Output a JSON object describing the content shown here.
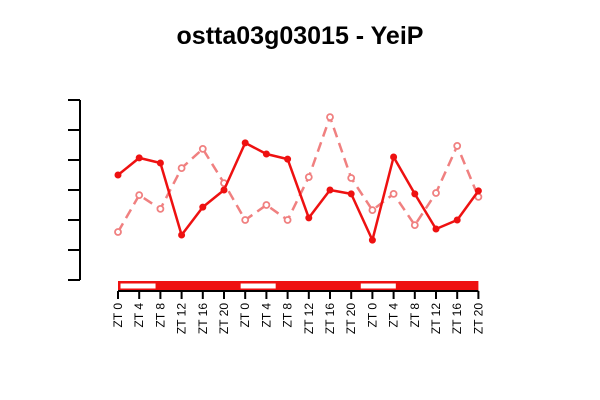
{
  "chart_data": {
    "type": "line",
    "title": "ostta03g03015 - YeiP",
    "xlabel": "",
    "ylabel": "",
    "x_tick_labels": [
      "ZT 0",
      "ZT 4",
      "ZT 8",
      "ZT 12",
      "ZT 16",
      "ZT 20",
      "ZT 0",
      "ZT 4",
      "ZT 8",
      "ZT 12",
      "ZT 16",
      "ZT 20",
      "ZT 0",
      "ZT 4",
      "ZT 8",
      "ZT 12",
      "ZT 16",
      "ZT 20"
    ],
    "ylim": [
      0,
      6
    ],
    "y_tick_count": 7,
    "y_tick_labels_shown": false,
    "light_dark_bar": [
      "light",
      "dark",
      "dark",
      "light",
      "dark",
      "dark",
      "light",
      "dark",
      "dark"
    ],
    "series": [
      {
        "color": "#ee1111",
        "line_style": "solid",
        "marker": "filled-circle",
        "values": [
          3.5,
          4.07,
          3.9,
          1.5,
          2.43,
          3.0,
          4.57,
          4.2,
          4.03,
          2.07,
          3.0,
          2.87,
          1.33,
          4.1,
          2.87,
          1.7,
          2.0,
          2.97
        ]
      },
      {
        "color": "#f08080",
        "line_style": "dashed",
        "marker": "open-circle",
        "values": [
          1.6,
          2.83,
          2.37,
          3.73,
          4.37,
          3.23,
          2.0,
          2.5,
          2.0,
          3.43,
          5.43,
          3.4,
          2.33,
          2.87,
          1.83,
          2.9,
          4.47,
          2.77
        ]
      }
    ]
  }
}
